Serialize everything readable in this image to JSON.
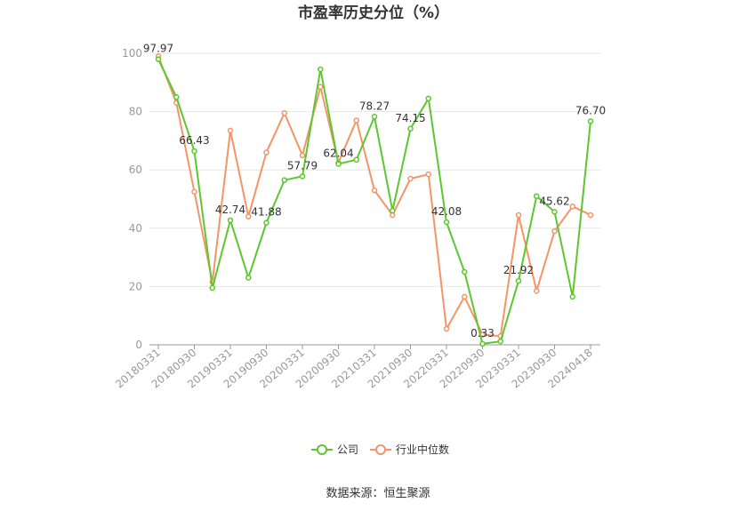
{
  "source": "数据来源：恒生聚源",
  "chart_data": {
    "type": "line",
    "title": "市盈率历史分位（%）",
    "xlabel": "",
    "ylabel": "",
    "ylim": [
      0,
      100
    ],
    "yticks": [
      0,
      20,
      40,
      60,
      80,
      100
    ],
    "grid": true,
    "legend_position": "bottom",
    "x": [
      "20180331",
      "20180630",
      "20180930",
      "20181231",
      "20190331",
      "20190630",
      "20190930",
      "20191231",
      "20200331",
      "20200630",
      "20200930",
      "20201231",
      "20210331",
      "20210630",
      "20210930",
      "20211231",
      "20220331",
      "20220630",
      "20220930",
      "20221231",
      "20230331",
      "20230630",
      "20230930",
      "20231231",
      "20240418"
    ],
    "x_tick_labels": [
      "20180331",
      "20180930",
      "20190331",
      "20190930",
      "20200331",
      "20200930",
      "20210331",
      "20210930",
      "20220331",
      "20220930",
      "20230331",
      "20230930",
      "20240418"
    ],
    "series": [
      {
        "name": "公司",
        "color": "#5cc72f",
        "values": [
          97.97,
          85,
          66.43,
          19.5,
          42.74,
          23,
          41.88,
          56.5,
          57.79,
          94.5,
          62.04,
          63.5,
          78.27,
          46,
          74.15,
          84.5,
          42.08,
          25,
          0.33,
          1.2,
          21.92,
          51,
          45.62,
          16.5,
          76.7
        ],
        "labels": {
          "0": "97.97",
          "2": "66.43",
          "4": "42.74",
          "6": "41.88",
          "8": "57.79",
          "10": "62.04",
          "12": "78.27",
          "14": "74.15",
          "16": "42.08",
          "18": "0.33",
          "20": "21.92",
          "22": "45.62",
          "24": "76.70"
        }
      },
      {
        "name": "行业中位数",
        "color": "#f59467",
        "values": [
          99,
          83,
          52.5,
          21.5,
          73.5,
          44,
          66,
          79.5,
          65,
          88.5,
          62.5,
          77,
          53,
          44.5,
          57,
          58.5,
          5.5,
          16.5,
          3.5,
          3,
          44.5,
          18.5,
          39,
          47.5,
          44.5
        ]
      }
    ]
  }
}
